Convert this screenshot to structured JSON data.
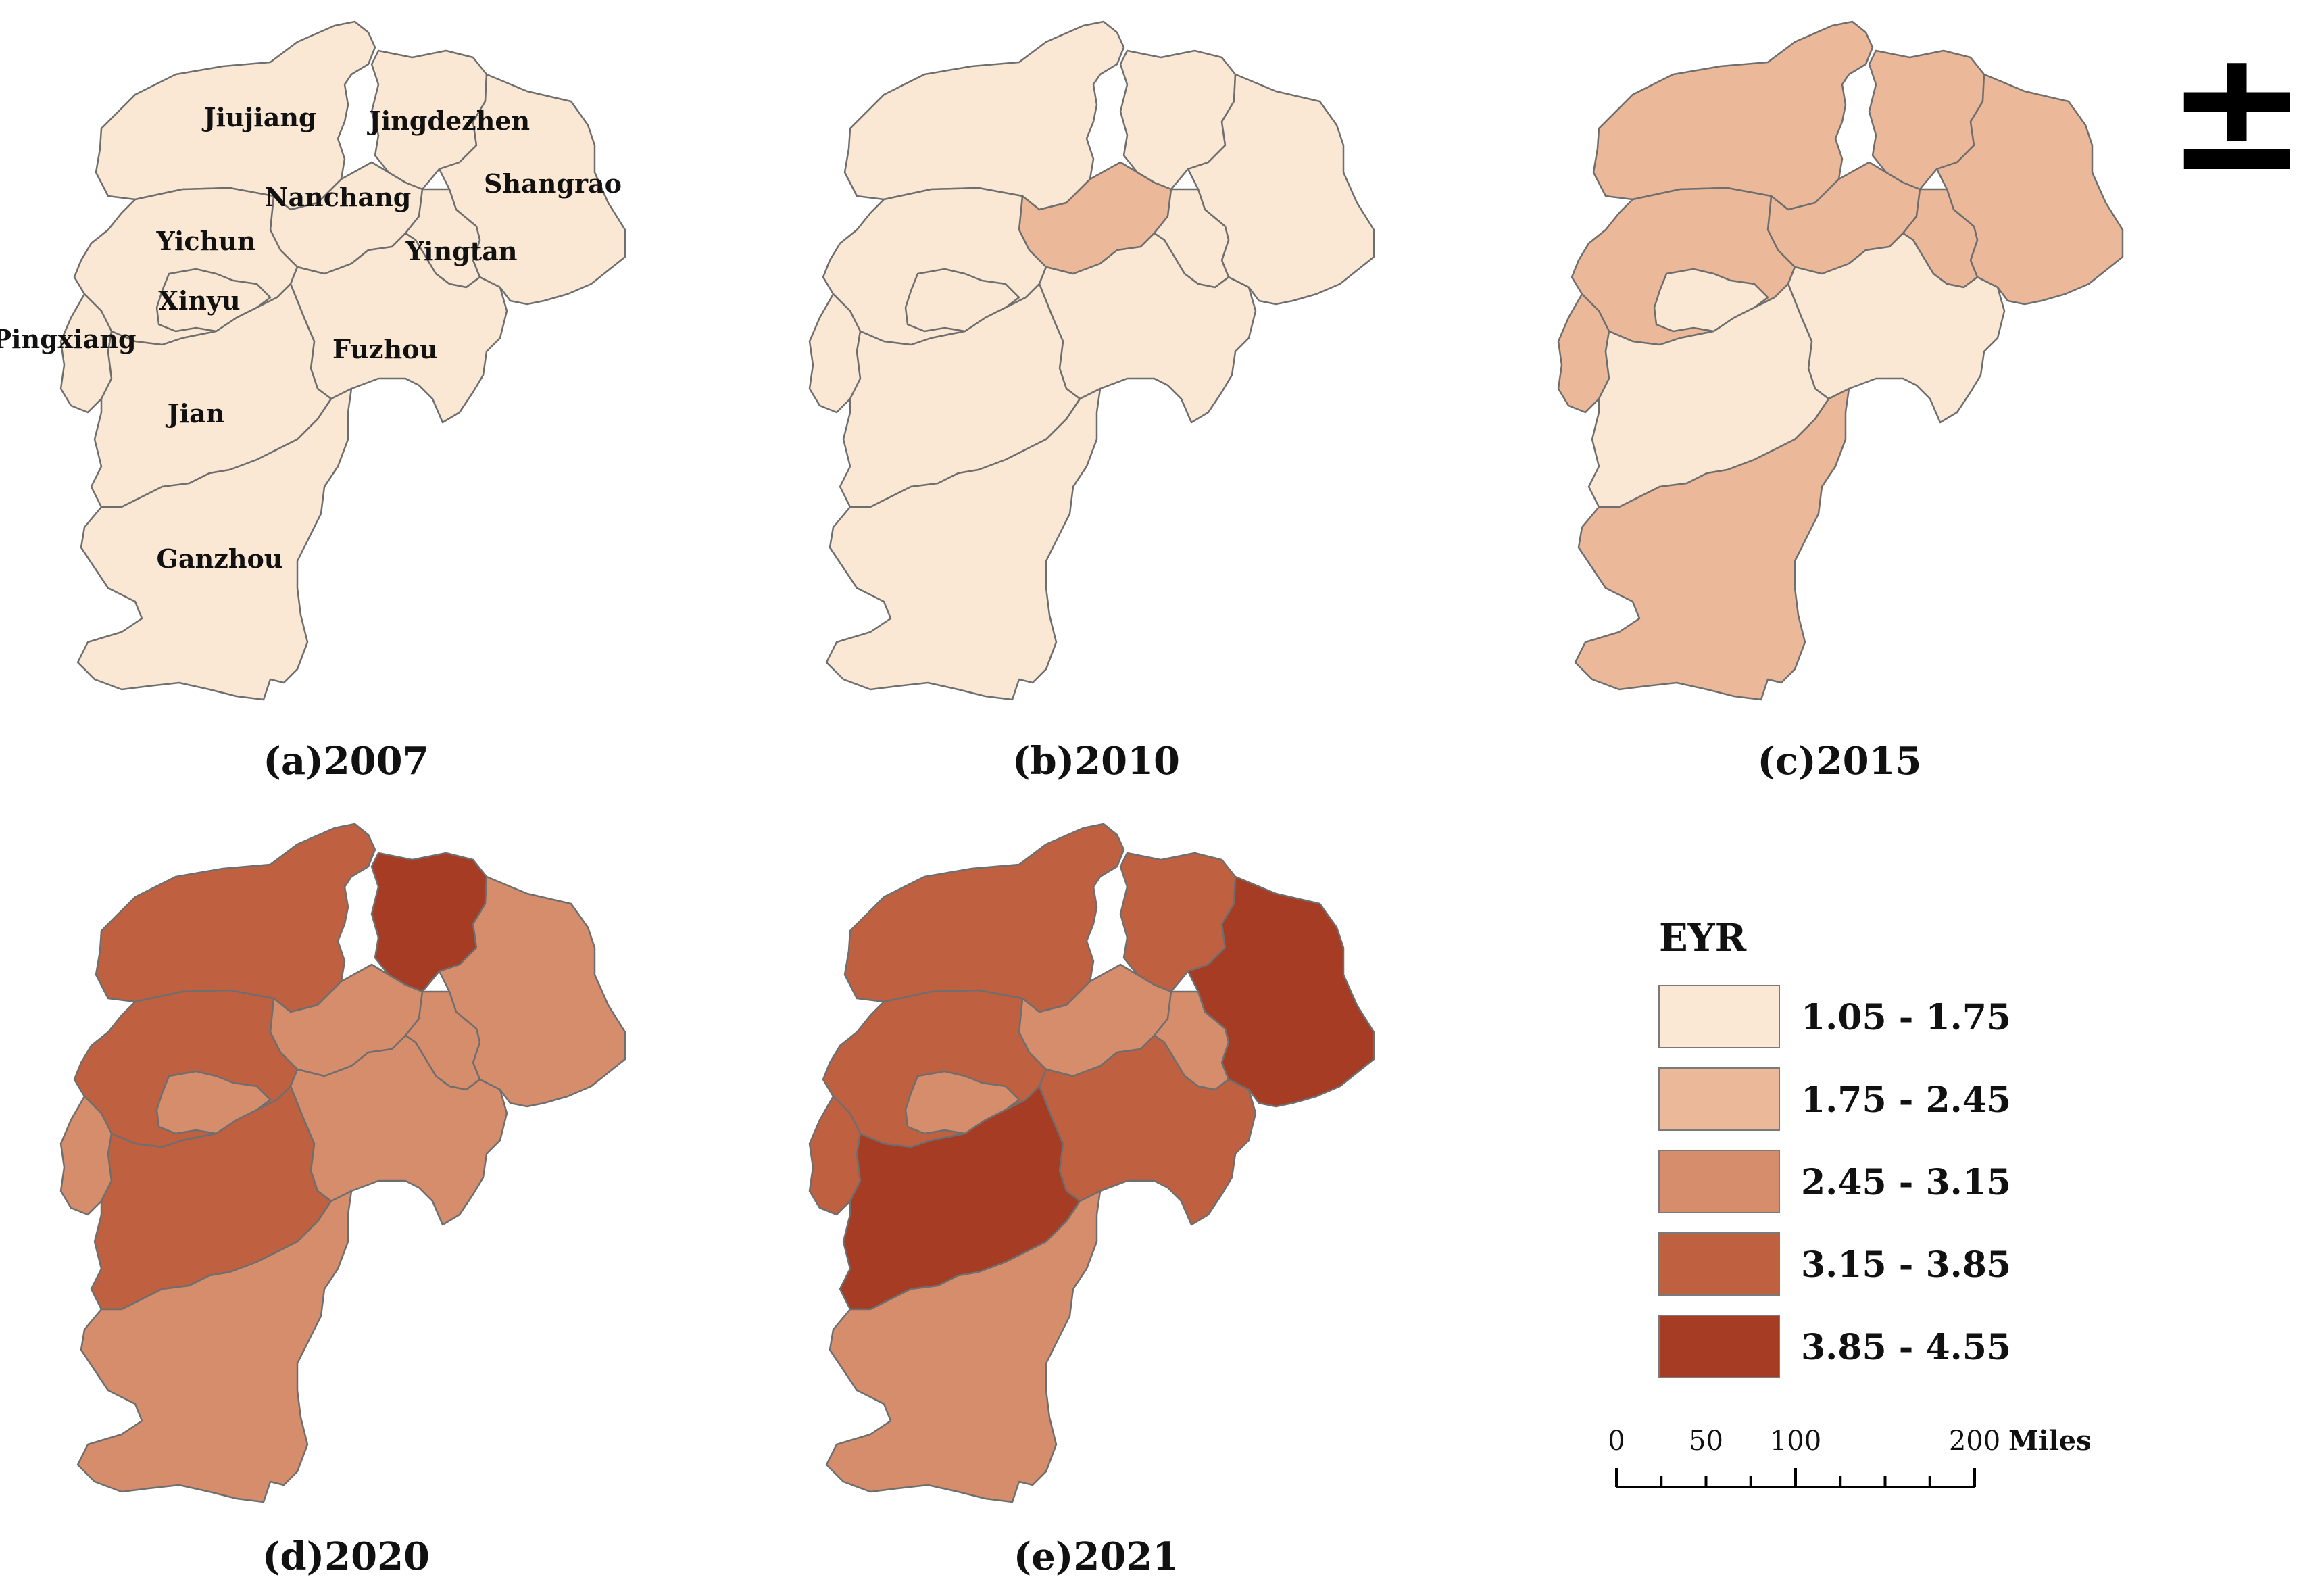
{
  "region_names": [
    "Jiujiang",
    "Jingdezhen",
    "Shangrao",
    "Nanchang",
    "Yichun",
    "Yingtan",
    "Xinyu",
    "Pingxiang",
    "Fuzhou",
    "Jian",
    "Ganzhou"
  ],
  "legend": {
    "title": "EYR",
    "classes": [
      {
        "label": "1.05 - 1.75",
        "color": "#fae8d4"
      },
      {
        "label": "1.75 - 2.45",
        "color": "#ebb89a"
      },
      {
        "label": "2.45 - 3.15",
        "color": "#d68d6c"
      },
      {
        "label": "3.15 - 3.85",
        "color": "#bf6141"
      },
      {
        "label": "3.85 - 4.55",
        "color": "#a63c24"
      }
    ]
  },
  "panels": [
    {
      "caption": "(a)2007",
      "show_labels": true,
      "classes": {
        "Jiujiang": 0,
        "Jingdezhen": 0,
        "Shangrao": 0,
        "Nanchang": 0,
        "Yichun": 0,
        "Yingtan": 0,
        "Xinyu": 0,
        "Pingxiang": 0,
        "Fuzhou": 0,
        "Jian": 0,
        "Ganzhou": 0
      }
    },
    {
      "caption": "(b)2010",
      "show_labels": false,
      "classes": {
        "Jiujiang": 0,
        "Jingdezhen": 0,
        "Shangrao": 0,
        "Nanchang": 1,
        "Yichun": 0,
        "Yingtan": 0,
        "Xinyu": 0,
        "Pingxiang": 0,
        "Fuzhou": 0,
        "Jian": 0,
        "Ganzhou": 0
      }
    },
    {
      "caption": "(c)2015",
      "show_labels": false,
      "classes": {
        "Jiujiang": 1,
        "Jingdezhen": 1,
        "Shangrao": 1,
        "Nanchang": 1,
        "Yichun": 1,
        "Yingtan": 1,
        "Xinyu": 0,
        "Pingxiang": 1,
        "Fuzhou": 0,
        "Jian": 0,
        "Ganzhou": 1
      }
    },
    {
      "caption": "(d)2020",
      "show_labels": false,
      "classes": {
        "Jiujiang": 3,
        "Jingdezhen": 4,
        "Shangrao": 2,
        "Nanchang": 2,
        "Yichun": 3,
        "Yingtan": 2,
        "Xinyu": 2,
        "Pingxiang": 2,
        "Fuzhou": 2,
        "Jian": 3,
        "Ganzhou": 2
      }
    },
    {
      "caption": "(e)2021",
      "show_labels": false,
      "classes": {
        "Jiujiang": 3,
        "Jingdezhen": 3,
        "Shangrao": 4,
        "Nanchang": 2,
        "Yichun": 3,
        "Yingtan": 2,
        "Xinyu": 2,
        "Pingxiang": 3,
        "Fuzhou": 3,
        "Jian": 4,
        "Ganzhou": 2
      }
    }
  ],
  "scale_bar": {
    "ticks": [
      "0",
      "50",
      "100",
      "200"
    ],
    "tick_values": [
      0,
      50,
      100,
      200
    ],
    "unit": "Miles"
  },
  "north_arrow": {
    "symbol": "±",
    "icon": "north-arrow-icon"
  }
}
